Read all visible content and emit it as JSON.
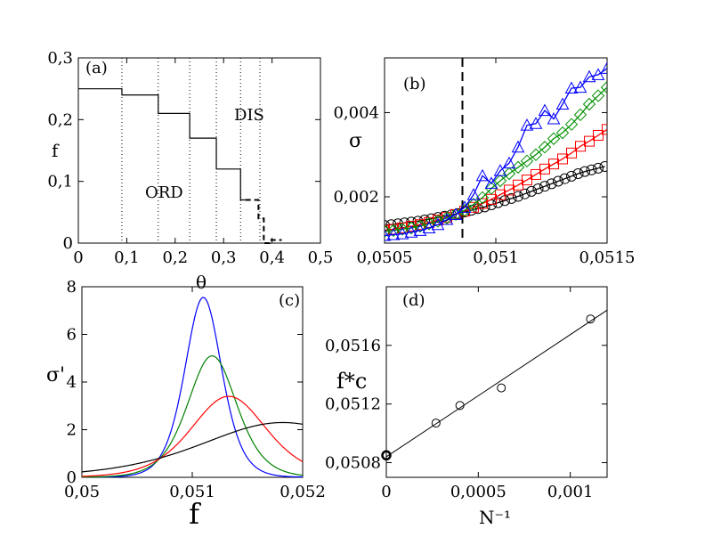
{
  "chart_data": [
    {
      "panel": "(a)",
      "type": "line",
      "xlabel": "θ",
      "ylabel": "f",
      "xlim": [
        0,
        0.5
      ],
      "ylim": [
        0,
        0.3
      ],
      "xticks": [
        "0",
        "0,1",
        "0,2",
        "0,3",
        "0,4",
        "0,5"
      ],
      "yticks": [
        "0",
        "0,1",
        "0,2",
        "0,3"
      ],
      "annotations": [
        "ORD",
        "DIS"
      ],
      "vlines": [
        0.09,
        0.165,
        0.23,
        0.285,
        0.335,
        0.375
      ],
      "series": [
        {
          "name": "solid",
          "style": "solid",
          "x": [
            0,
            0.09,
            0.09,
            0.165,
            0.165,
            0.23,
            0.23,
            0.285,
            0.285,
            0.335,
            0.335,
            0.345
          ],
          "y": [
            0.25,
            0.25,
            0.24,
            0.24,
            0.21,
            0.21,
            0.17,
            0.17,
            0.12,
            0.12,
            0.07,
            0.07
          ]
        },
        {
          "name": "dashed",
          "style": "dashed",
          "x": [
            0.345,
            0.372,
            0.372,
            0.383,
            0.383,
            0.395,
            0.395,
            0.42
          ],
          "y": [
            0.07,
            0.07,
            0.04,
            0.04,
            0.0,
            0.0,
            0.005,
            0.005
          ]
        }
      ]
    },
    {
      "panel": "(b)",
      "type": "scatter",
      "xlabel": "",
      "ylabel": "σ",
      "xlim": [
        0.0505,
        0.0515
      ],
      "ylim": [
        0.0009,
        0.0053
      ],
      "xticks": [
        "0,0505",
        "0,051",
        "0,0515"
      ],
      "yticks": [
        "0,002",
        "0,004"
      ],
      "vline": 0.05085,
      "series": [
        {
          "name": "black circles",
          "color": "#000000",
          "marker": "circle",
          "x": [
            0.0505,
            0.05053,
            0.05056,
            0.05059,
            0.05062,
            0.05065,
            0.05068,
            0.05071,
            0.05074,
            0.05077,
            0.0508,
            0.05083,
            0.05086,
            0.05089,
            0.05092,
            0.05095,
            0.05098,
            0.05101,
            0.05104,
            0.05107,
            0.0511,
            0.05113,
            0.05116,
            0.05119,
            0.05122,
            0.05125,
            0.05128,
            0.05131,
            0.05134,
            0.05137,
            0.0514,
            0.05143,
            0.05146,
            0.05149
          ],
          "y": [
            0.00132,
            0.00134,
            0.00136,
            0.00138,
            0.0014,
            0.00142,
            0.00145,
            0.00148,
            0.00151,
            0.00154,
            0.00157,
            0.0016,
            0.00164,
            0.00168,
            0.00172,
            0.00176,
            0.00181,
            0.00186,
            0.00191,
            0.00196,
            0.00201,
            0.00207,
            0.00213,
            0.00219,
            0.00225,
            0.00231,
            0.00237,
            0.00243,
            0.00249,
            0.00255,
            0.0026,
            0.00264,
            0.00268,
            0.00272
          ]
        },
        {
          "name": "red squares",
          "color": "#ff0000",
          "marker": "square",
          "x": [
            0.0505,
            0.05054,
            0.05058,
            0.05062,
            0.05066,
            0.0507,
            0.05074,
            0.05078,
            0.05082,
            0.05086,
            0.0509,
            0.05094,
            0.05098,
            0.05102,
            0.05106,
            0.0511,
            0.05114,
            0.05118,
            0.05122,
            0.05126,
            0.0513,
            0.05134,
            0.05138,
            0.05142,
            0.05146,
            0.0515
          ],
          "y": [
            0.0012,
            0.00123,
            0.00126,
            0.0013,
            0.00134,
            0.00139,
            0.00145,
            0.00151,
            0.00158,
            0.00166,
            0.00175,
            0.00184,
            0.00194,
            0.00205,
            0.00216,
            0.00228,
            0.0024,
            0.00253,
            0.00266,
            0.00278,
            0.0029,
            0.00304,
            0.0032,
            0.00332,
            0.00346,
            0.0036
          ]
        },
        {
          "name": "green diamonds",
          "color": "#009000",
          "marker": "diamond",
          "x": [
            0.0505,
            0.05054,
            0.05058,
            0.05062,
            0.05066,
            0.0507,
            0.05074,
            0.05078,
            0.05082,
            0.05086,
            0.0509,
            0.05094,
            0.05098,
            0.05102,
            0.05106,
            0.0511,
            0.05114,
            0.05118,
            0.05122,
            0.05126,
            0.0513,
            0.05134,
            0.05138,
            0.05142,
            0.05146,
            0.0515
          ],
          "y": [
            0.00118,
            0.0012,
            0.00123,
            0.00126,
            0.0013,
            0.00136,
            0.00142,
            0.0015,
            0.00158,
            0.00168,
            0.00182,
            0.00198,
            0.0022,
            0.00238,
            0.00255,
            0.0027,
            0.00285,
            0.003,
            0.00318,
            0.00338,
            0.00352,
            0.00372,
            0.00395,
            0.0042,
            0.0044,
            0.0046
          ]
        },
        {
          "name": "blue triangles",
          "color": "#0000ff",
          "marker": "triangle",
          "x": [
            0.0505,
            0.05054,
            0.05058,
            0.05062,
            0.05066,
            0.0507,
            0.05074,
            0.05078,
            0.05082,
            0.05086,
            0.0509,
            0.05094,
            0.05098,
            0.05102,
            0.05106,
            0.0511,
            0.05114,
            0.05118,
            0.05122,
            0.05126,
            0.0513,
            0.05134,
            0.05138,
            0.05142,
            0.05146,
            0.0515
          ],
          "y": [
            0.00108,
            0.0011,
            0.00112,
            0.00116,
            0.0012,
            0.00126,
            0.00134,
            0.00146,
            0.00158,
            0.00175,
            0.00205,
            0.0025,
            0.00232,
            0.00262,
            0.0028,
            0.00318,
            0.0037,
            0.00374,
            0.00405,
            0.00385,
            0.0042,
            0.00458,
            0.0046,
            0.00485,
            0.0049,
            0.00505
          ]
        }
      ]
    },
    {
      "panel": "(c)",
      "type": "line",
      "xlabel": "f",
      "ylabel": "σ'",
      "xlim": [
        0.05,
        0.052
      ],
      "ylim": [
        0,
        8
      ],
      "xticks": [
        "0,05",
        "0,051",
        "0,052"
      ],
      "yticks": [
        "0",
        "2",
        "4",
        "6",
        "8"
      ],
      "series": [
        {
          "name": "blue",
          "color": "#0000ff",
          "peak_x": 0.0511,
          "peak_y": 7.55,
          "width": 0.00027
        },
        {
          "name": "green",
          "color": "#008000",
          "peak_x": 0.05118,
          "peak_y": 5.1,
          "width": 0.00036
        },
        {
          "name": "red",
          "color": "#ff0000",
          "peak_x": 0.05133,
          "peak_y": 3.4,
          "width": 0.00055
        },
        {
          "name": "black",
          "color": "#000000",
          "peak_x": 0.05182,
          "peak_y": 2.3,
          "width": 0.0012
        }
      ]
    },
    {
      "panel": "(d)",
      "type": "scatter",
      "xlabel": "N⁻¹",
      "ylabel": "f*c",
      "xlim": [
        0,
        0.0012
      ],
      "ylim": [
        0.0507,
        0.052
      ],
      "xticks": [
        "0",
        "0,0005",
        "0,001"
      ],
      "yticks": [
        "0,0508",
        "0,0512",
        "0,0516"
      ],
      "points": {
        "x": [
          0.0,
          0.00027,
          0.0004,
          0.000625,
          0.00111
        ],
        "y": [
          0.05085,
          0.05107,
          0.05119,
          0.05131,
          0.05178
        ]
      },
      "fit": {
        "x": [
          0.0,
          0.0012
        ],
        "y": [
          0.05084,
          0.05184
        ]
      }
    }
  ]
}
